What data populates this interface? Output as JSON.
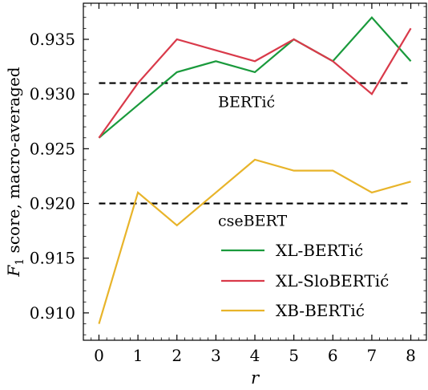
{
  "chart_data": {
    "type": "line",
    "x": [
      0,
      1,
      2,
      3,
      4,
      5,
      6,
      7,
      8
    ],
    "xlim": [
      -0.4,
      8.4
    ],
    "ylim": [
      0.9075,
      0.9383
    ],
    "xticks": [
      0,
      1,
      2,
      3,
      4,
      5,
      6,
      7,
      8
    ],
    "yticks": [
      0.91,
      0.915,
      0.92,
      0.925,
      0.93,
      0.935
    ],
    "ytick_labels": [
      "0.910",
      "0.915",
      "0.920",
      "0.925",
      "0.930",
      "0.935"
    ],
    "xlabel": "r",
    "ylabel_main": "F",
    "ylabel_sub": "1",
    "ylabel_rest": " score, macro-averaged",
    "series": [
      {
        "name": "XL-BERTić",
        "color": "#1a9a3c",
        "values": [
          0.926,
          0.929,
          0.932,
          0.933,
          0.932,
          0.935,
          0.933,
          0.937,
          0.933
        ]
      },
      {
        "name": "XL-SloBERTić",
        "color": "#d93a4a",
        "values": [
          0.926,
          0.931,
          0.935,
          0.934,
          0.933,
          0.935,
          0.933,
          0.93,
          0.936
        ]
      },
      {
        "name": "XB-BERTić",
        "color": "#e8b42a",
        "values": [
          0.909,
          0.921,
          0.918,
          0.921,
          0.924,
          0.923,
          0.923,
          0.921,
          0.922
        ]
      }
    ],
    "reference_lines": [
      {
        "label": "BERTić",
        "value": 0.931,
        "color": "#000000",
        "style": "dashed"
      },
      {
        "label": "cseBERT",
        "value": 0.92,
        "color": "#000000",
        "style": "dashed"
      }
    ],
    "grid": false,
    "legend_position": "lower-right"
  }
}
